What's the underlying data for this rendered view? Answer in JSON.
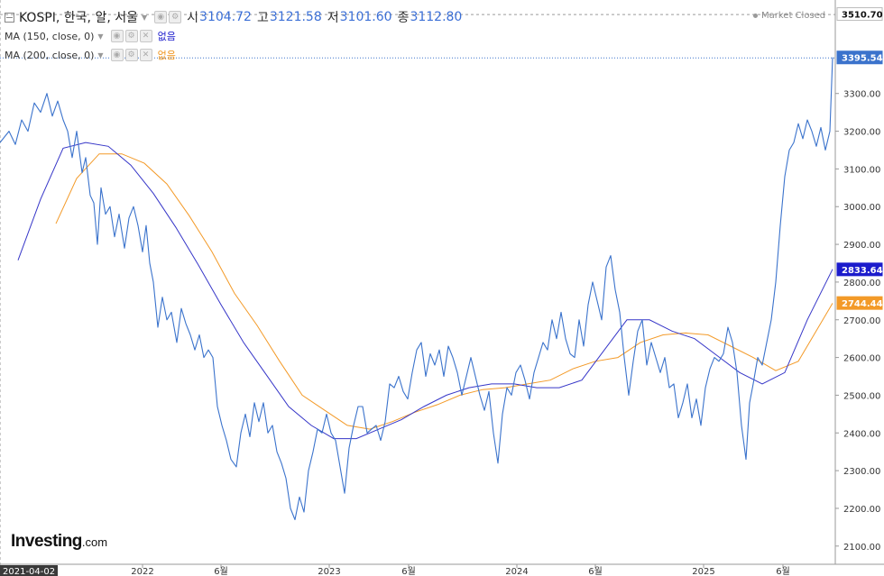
{
  "header": {
    "symbol": "KOSPI, 한국, 알, 서울",
    "open_label": "시",
    "open": "3104.72",
    "high_label": "고",
    "high": "3121.58",
    "low_label": "저",
    "low": "3101.60",
    "close_label": "종",
    "close": "3112.80",
    "market_status": "Market Closed"
  },
  "indicators": [
    {
      "label": "MA (150, close, 0)",
      "value": "없음",
      "color": "#1c1ccc"
    },
    {
      "label": "MA (200, close, 0)",
      "value": "없음",
      "color": "#f0951e"
    }
  ],
  "logo": {
    "name": "Investing",
    "tld": ".com"
  },
  "chart_data": {
    "type": "line",
    "price_color": "#3b73cc",
    "ma150_color": "#3636c8",
    "ma200_color": "#f39a28",
    "ylim": [
      2060,
      3520
    ],
    "yticks": [
      2100,
      2200,
      2300,
      2400,
      2500,
      2600,
      2700,
      2800,
      2900,
      3000,
      3100,
      3200,
      3300
    ],
    "xticks": [
      "2021-04-02",
      "2022",
      "6월",
      "2023",
      "6월",
      "2024",
      "6월",
      "2025",
      "6월"
    ],
    "price_labels": [
      {
        "value": "3510.70",
        "bg": "#ffffff",
        "fg": "#111111",
        "y": 3510.7
      },
      {
        "value": "3395.54",
        "bg": "#3b73cc",
        "fg": "#ffffff",
        "y": 3395.54
      },
      {
        "value": "2833.64",
        "bg": "#1c1ccc",
        "fg": "#ffffff",
        "y": 2833.64
      },
      {
        "value": "2744.44",
        "bg": "#f39a28",
        "fg": "#ffffff",
        "y": 2744.44
      }
    ],
    "price_x": [
      0,
      10,
      17,
      24,
      31,
      38,
      45,
      52,
      58,
      64,
      70,
      75,
      80,
      85,
      91,
      95,
      100,
      104,
      108,
      112,
      117,
      122,
      127,
      132,
      138,
      143,
      148,
      153,
      158,
      162,
      166,
      170,
      175,
      180,
      185,
      190,
      196,
      201,
      206,
      211,
      216,
      221,
      226,
      231,
      236,
      241,
      246,
      251,
      256,
      262,
      267,
      272,
      277,
      282,
      287,
      292,
      297,
      302,
      307,
      312,
      317,
      322,
      327,
      332,
      337,
      342,
      347,
      352,
      357,
      362,
      367,
      372,
      377,
      382,
      387,
      392,
      397,
      402,
      407,
      412,
      417,
      422,
      427,
      432,
      437,
      442,
      447,
      452,
      457,
      462,
      467,
      472,
      477,
      482,
      487,
      492,
      497,
      502,
      507,
      512,
      517,
      522,
      527,
      532,
      537,
      542,
      547,
      552,
      557,
      562,
      567,
      572,
      577,
      582,
      587,
      592,
      597,
      602,
      607,
      612,
      617,
      622,
      627,
      632,
      637,
      642,
      647,
      652,
      657,
      662,
      667,
      672,
      677,
      682,
      687,
      692,
      697,
      702,
      707,
      712,
      717,
      722,
      727,
      732,
      737,
      742,
      747,
      752,
      757,
      762,
      767,
      772,
      777,
      782,
      787,
      792,
      797,
      802,
      807,
      812,
      817,
      822,
      827,
      831,
      835,
      840,
      845,
      850,
      855,
      860,
      865,
      870,
      875,
      880,
      885,
      890,
      895,
      900,
      905,
      910,
      915,
      920,
      923
    ],
    "price_y": [
      3170,
      3200,
      3165,
      3230,
      3200,
      3275,
      3250,
      3300,
      3240,
      3280,
      3230,
      3200,
      3130,
      3200,
      3090,
      3130,
      3030,
      3010,
      2900,
      3050,
      2980,
      3000,
      2920,
      2980,
      2890,
      2970,
      3000,
      2950,
      2880,
      2950,
      2850,
      2800,
      2680,
      2760,
      2700,
      2720,
      2640,
      2730,
      2690,
      2660,
      2620,
      2660,
      2600,
      2620,
      2600,
      2470,
      2420,
      2380,
      2330,
      2310,
      2400,
      2450,
      2390,
      2480,
      2430,
      2480,
      2400,
      2420,
      2350,
      2320,
      2280,
      2200,
      2170,
      2230,
      2190,
      2300,
      2350,
      2410,
      2400,
      2450,
      2400,
      2380,
      2310,
      2240,
      2360,
      2420,
      2470,
      2470,
      2400,
      2410,
      2420,
      2380,
      2430,
      2530,
      2520,
      2550,
      2510,
      2490,
      2560,
      2620,
      2640,
      2550,
      2610,
      2580,
      2620,
      2550,
      2630,
      2600,
      2560,
      2500,
      2550,
      2600,
      2550,
      2500,
      2460,
      2510,
      2400,
      2320,
      2450,
      2520,
      2500,
      2560,
      2580,
      2540,
      2490,
      2560,
      2600,
      2640,
      2620,
      2700,
      2650,
      2720,
      2650,
      2610,
      2600,
      2700,
      2630,
      2740,
      2800,
      2750,
      2700,
      2840,
      2870,
      2780,
      2720,
      2600,
      2500,
      2590,
      2670,
      2700,
      2580,
      2640,
      2600,
      2560,
      2600,
      2520,
      2530,
      2440,
      2480,
      2530,
      2440,
      2490,
      2420,
      2520,
      2570,
      2600,
      2590,
      2610,
      2680,
      2640,
      2560,
      2420,
      2330,
      2480,
      2530,
      2600,
      2580,
      2640,
      2700,
      2800,
      2950,
      3080,
      3150,
      3170,
      3220,
      3180,
      3230,
      3200,
      3160,
      3210,
      3150,
      3200,
      3396
    ],
    "ma150_x": [
      20,
      45,
      70,
      95,
      120,
      145,
      170,
      195,
      220,
      245,
      270,
      295,
      320,
      345,
      370,
      395,
      420,
      445,
      470,
      495,
      520,
      545,
      570,
      595,
      620,
      645,
      670,
      695,
      720,
      745,
      770,
      795,
      820,
      845,
      870,
      895,
      923
    ],
    "ma150_y": [
      2858,
      3020,
      3155,
      3170,
      3160,
      3110,
      3035,
      2945,
      2845,
      2740,
      2640,
      2555,
      2470,
      2420,
      2385,
      2385,
      2410,
      2435,
      2470,
      2500,
      2520,
      2530,
      2530,
      2520,
      2520,
      2540,
      2620,
      2700,
      2700,
      2670,
      2650,
      2605,
      2560,
      2530,
      2560,
      2700,
      2834
    ],
    "ma200_x": [
      62,
      85,
      110,
      135,
      160,
      185,
      210,
      235,
      260,
      285,
      310,
      335,
      360,
      385,
      410,
      435,
      460,
      485,
      510,
      535,
      560,
      585,
      610,
      635,
      660,
      685,
      710,
      735,
      760,
      785,
      810,
      835,
      860,
      885,
      923
    ],
    "ma200_y": [
      2955,
      3075,
      3140,
      3140,
      3115,
      3060,
      2975,
      2880,
      2770,
      2685,
      2590,
      2500,
      2460,
      2420,
      2410,
      2430,
      2455,
      2475,
      2500,
      2515,
      2520,
      2530,
      2540,
      2570,
      2590,
      2600,
      2640,
      2660,
      2665,
      2660,
      2630,
      2600,
      2565,
      2590,
      2744
    ]
  }
}
